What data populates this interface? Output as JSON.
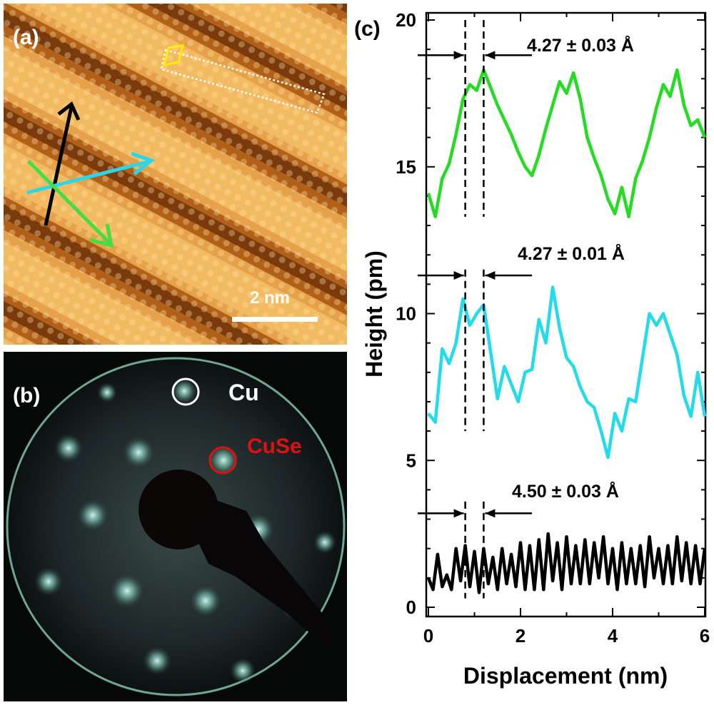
{
  "panels": {
    "a": {
      "label": "(a)",
      "scale_bar_label": "2 nm",
      "arrow_colors": {
        "black": "#000000",
        "cyan": "#2ad6e8",
        "green": "#44dd44"
      }
    },
    "b": {
      "label": "(b)",
      "cu_label": "Cu",
      "cuse_label": "CuSe",
      "cu_color": "#ffffff",
      "cuse_color": "#e01010"
    },
    "c": {
      "label": "(c)",
      "annotations": [
        "4.27 ± 0.03 Å",
        "4.27 ± 0.01 Å",
        "4.50 ± 0.03 Å"
      ]
    }
  },
  "chart_data": {
    "type": "line",
    "xlabel": "Displacement (nm)",
    "ylabel": "Height (pm)",
    "xlim": [
      0,
      6
    ],
    "ylim": [
      0,
      21
    ],
    "xticks": [
      0,
      2,
      4,
      6
    ],
    "yticks": [
      0,
      5,
      10,
      15,
      20
    ],
    "grid": false,
    "markers_nm": [
      0.8,
      1.2
    ],
    "series": [
      {
        "color": "#22dd22",
        "x": [
          0,
          0.15,
          0.3,
          0.45,
          0.6,
          0.75,
          0.9,
          1.05,
          1.2,
          1.35,
          1.5,
          1.65,
          1.8,
          1.95,
          2.1,
          2.25,
          2.4,
          2.55,
          2.7,
          2.85,
          3.0,
          3.15,
          3.3,
          3.45,
          3.6,
          3.75,
          3.9,
          4.05,
          4.2,
          4.35,
          4.5,
          4.65,
          4.8,
          4.95,
          5.1,
          5.25,
          5.4,
          5.55,
          5.7,
          5.85,
          6.0
        ],
        "y": [
          14.1,
          13.3,
          14.6,
          15.1,
          16.1,
          17.3,
          17.8,
          17.6,
          18.3,
          17.7,
          17.1,
          16.6,
          16.1,
          15.5,
          15.0,
          14.7,
          15.4,
          16.3,
          17.1,
          17.9,
          17.5,
          18.2,
          17.3,
          16.0,
          15.3,
          14.7,
          13.9,
          13.4,
          14.3,
          13.3,
          14.6,
          15.2,
          16.0,
          17.0,
          17.8,
          17.4,
          18.3,
          17.1,
          16.4,
          16.6,
          16.0
        ]
      },
      {
        "color": "#22dcea",
        "x": [
          0,
          0.15,
          0.3,
          0.45,
          0.6,
          0.75,
          0.9,
          1.05,
          1.2,
          1.35,
          1.5,
          1.65,
          1.8,
          1.95,
          2.1,
          2.25,
          2.4,
          2.55,
          2.7,
          2.85,
          3.0,
          3.15,
          3.3,
          3.45,
          3.6,
          3.75,
          3.9,
          4.05,
          4.2,
          4.35,
          4.5,
          4.65,
          4.8,
          4.95,
          5.1,
          5.25,
          5.4,
          5.55,
          5.7,
          5.85,
          6.0
        ],
        "y": [
          6.6,
          6.3,
          8.8,
          8.3,
          9.0,
          10.5,
          9.6,
          10.0,
          10.3,
          8.7,
          7.1,
          8.2,
          7.6,
          7.0,
          8.0,
          8.1,
          9.8,
          9.0,
          10.9,
          9.5,
          8.5,
          8.2,
          7.5,
          7.0,
          6.8,
          6.0,
          5.1,
          6.6,
          6.0,
          7.1,
          7.0,
          8.5,
          10.0,
          9.6,
          10.0,
          9.3,
          8.6,
          7.2,
          6.5,
          8.0,
          6.5
        ]
      },
      {
        "color": "#000000",
        "x": [
          0,
          0.1,
          0.2,
          0.3,
          0.4,
          0.5,
          0.6,
          0.7,
          0.8,
          0.9,
          1.0,
          1.1,
          1.2,
          1.3,
          1.4,
          1.5,
          1.6,
          1.7,
          1.8,
          1.9,
          2.0,
          2.1,
          2.2,
          2.3,
          2.4,
          2.5,
          2.6,
          2.7,
          2.8,
          2.9,
          3.0,
          3.1,
          3.2,
          3.3,
          3.4,
          3.5,
          3.6,
          3.7,
          3.8,
          3.9,
          4.0,
          4.1,
          4.2,
          4.3,
          4.4,
          4.5,
          4.6,
          4.7,
          4.8,
          4.9,
          5.0,
          5.1,
          5.2,
          5.3,
          5.4,
          5.5,
          5.6,
          5.7,
          5.8,
          5.9,
          6.0
        ],
        "y": [
          1.0,
          0.6,
          1.8,
          0.7,
          1.1,
          0.6,
          2.0,
          0.9,
          2.1,
          0.7,
          1.9,
          0.5,
          2.0,
          0.8,
          1.7,
          0.6,
          2.0,
          0.8,
          1.8,
          0.7,
          2.2,
          0.6,
          2.1,
          0.6,
          2.3,
          0.6,
          2.5,
          0.9,
          2.2,
          0.6,
          2.4,
          0.8,
          2.1,
          0.8,
          2.3,
          0.8,
          2.2,
          1.0,
          2.4,
          0.8,
          2.0,
          0.6,
          2.2,
          0.8,
          2.0,
          0.8,
          2.1,
          0.7,
          2.4,
          1.0,
          2.0,
          0.8,
          2.1,
          0.8,
          2.4,
          0.9,
          2.2,
          0.8,
          2.1,
          0.8,
          2.0
        ]
      }
    ]
  }
}
